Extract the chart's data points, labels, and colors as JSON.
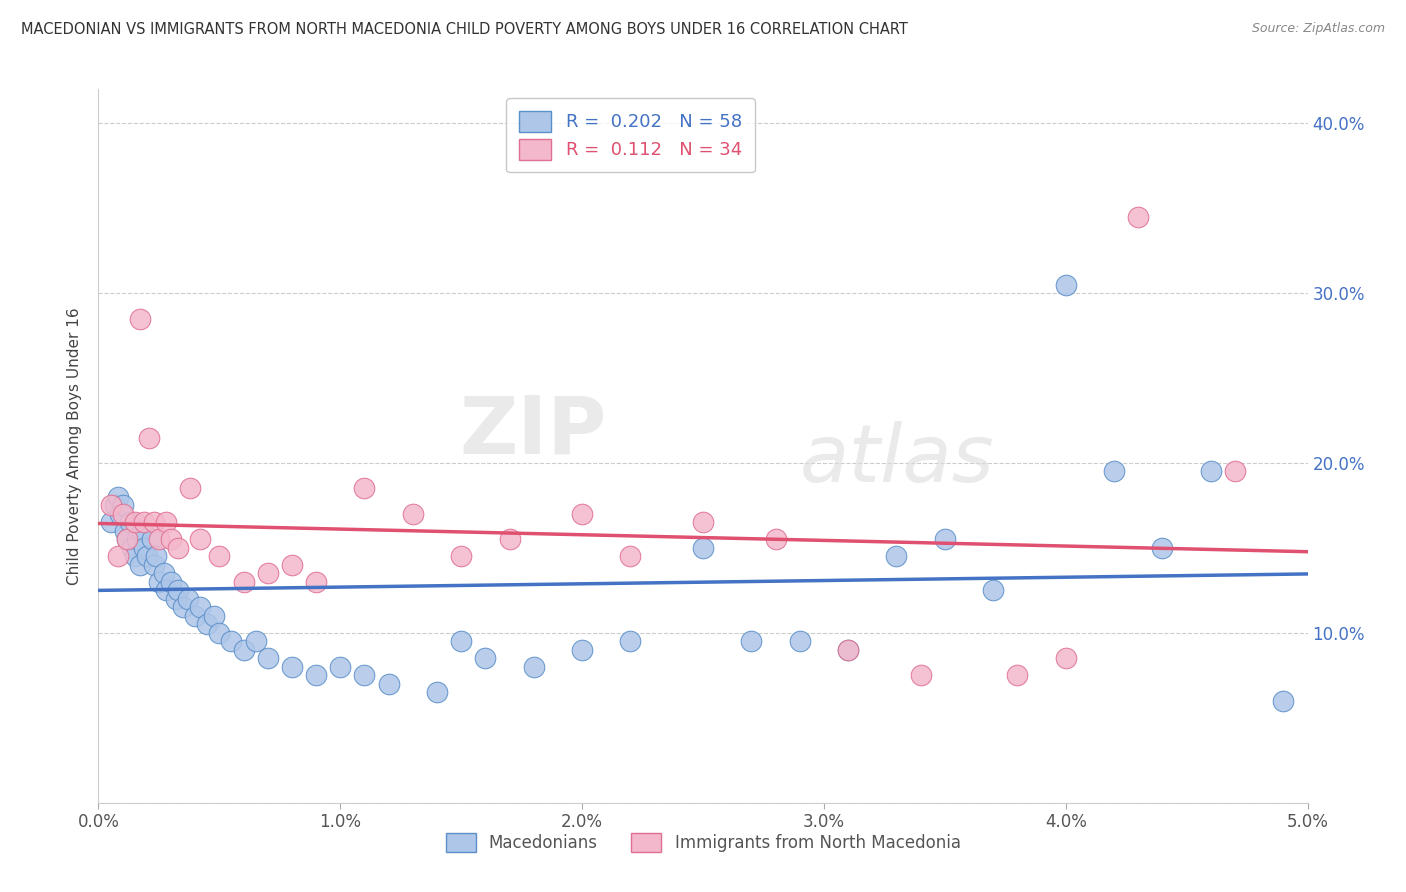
{
  "title": "MACEDONIAN VS IMMIGRANTS FROM NORTH MACEDONIA CHILD POVERTY AMONG BOYS UNDER 16 CORRELATION CHART",
  "source": "Source: ZipAtlas.com",
  "ylabel": "Child Poverty Among Boys Under 16",
  "xlim": [
    0.0,
    0.05
  ],
  "ylim": [
    0.0,
    0.42
  ],
  "yticks": [
    0.0,
    0.1,
    0.2,
    0.3,
    0.4
  ],
  "ytick_labels": [
    "",
    "10.0%",
    "20.0%",
    "30.0%",
    "40.0%"
  ],
  "xticks": [
    0.0,
    0.01,
    0.02,
    0.03,
    0.04,
    0.05
  ],
  "xtick_labels": [
    "0.0%",
    "1.0%",
    "2.0%",
    "3.0%",
    "4.0%",
    "5.0%"
  ],
  "blue_color": "#aec6e8",
  "pink_color": "#f4b8cc",
  "blue_edge_color": "#5b8fc9",
  "pink_edge_color": "#e07090",
  "blue_line_color": "#4472c4",
  "pink_line_color": "#e05070",
  "R_blue": 0.202,
  "N_blue": 58,
  "R_pink": 0.112,
  "N_pink": 34,
  "watermark_zip": "ZIP",
  "watermark_atlas": "atlas",
  "legend_label_blue": "Macedonians",
  "legend_label_pink": "Immigrants from North Macedonia",
  "blue_x": [
    0.0005,
    0.0007,
    0.0008,
    0.0009,
    0.001,
    0.0011,
    0.0012,
    0.0013,
    0.0014,
    0.0015,
    0.0016,
    0.0017,
    0.0018,
    0.0019,
    0.002,
    0.0022,
    0.0023,
    0.0024,
    0.0025,
    0.0027,
    0.0028,
    0.003,
    0.0032,
    0.0033,
    0.0035,
    0.0037,
    0.004,
    0.0042,
    0.0045,
    0.0048,
    0.005,
    0.0055,
    0.006,
    0.0065,
    0.007,
    0.008,
    0.009,
    0.01,
    0.011,
    0.012,
    0.014,
    0.015,
    0.016,
    0.018,
    0.02,
    0.022,
    0.025,
    0.027,
    0.029,
    0.031,
    0.033,
    0.035,
    0.037,
    0.04,
    0.042,
    0.044,
    0.046,
    0.049
  ],
  "blue_y": [
    0.165,
    0.175,
    0.18,
    0.17,
    0.175,
    0.16,
    0.155,
    0.165,
    0.15,
    0.145,
    0.155,
    0.14,
    0.16,
    0.15,
    0.145,
    0.155,
    0.14,
    0.145,
    0.13,
    0.135,
    0.125,
    0.13,
    0.12,
    0.125,
    0.115,
    0.12,
    0.11,
    0.115,
    0.105,
    0.11,
    0.1,
    0.095,
    0.09,
    0.095,
    0.085,
    0.08,
    0.075,
    0.08,
    0.075,
    0.07,
    0.065,
    0.095,
    0.085,
    0.08,
    0.09,
    0.095,
    0.15,
    0.095,
    0.095,
    0.09,
    0.145,
    0.155,
    0.125,
    0.305,
    0.195,
    0.15,
    0.195,
    0.06
  ],
  "pink_x": [
    0.0005,
    0.0008,
    0.001,
    0.0012,
    0.0015,
    0.0017,
    0.0019,
    0.0021,
    0.0023,
    0.0025,
    0.0028,
    0.003,
    0.0033,
    0.0038,
    0.0042,
    0.005,
    0.006,
    0.007,
    0.008,
    0.009,
    0.011,
    0.013,
    0.015,
    0.017,
    0.02,
    0.022,
    0.025,
    0.028,
    0.031,
    0.034,
    0.038,
    0.04,
    0.043,
    0.047
  ],
  "pink_y": [
    0.175,
    0.145,
    0.17,
    0.155,
    0.165,
    0.285,
    0.165,
    0.215,
    0.165,
    0.155,
    0.165,
    0.155,
    0.15,
    0.185,
    0.155,
    0.145,
    0.13,
    0.135,
    0.14,
    0.13,
    0.185,
    0.17,
    0.145,
    0.155,
    0.17,
    0.145,
    0.165,
    0.155,
    0.09,
    0.075,
    0.075,
    0.085,
    0.345,
    0.195
  ]
}
